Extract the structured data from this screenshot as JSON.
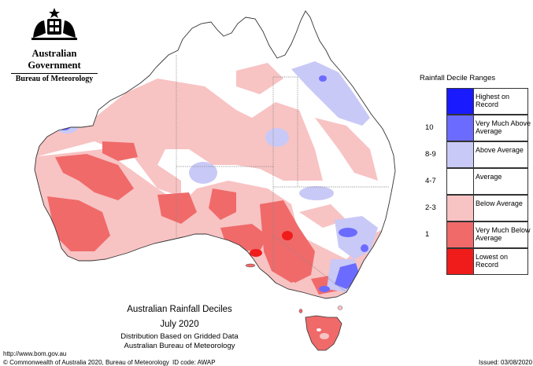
{
  "agency": {
    "government": "Australian Government",
    "bureau": "Bureau of Meteorology"
  },
  "caption": {
    "title": "Australian Rainfall Deciles",
    "period": "July 2020",
    "line3": "Distribution Based on Gridded Data",
    "line4": "Australian Bureau of Meteorology"
  },
  "legend": {
    "title": "Rainfall Decile Ranges",
    "items": [
      {
        "key": "",
        "label": "Highest on Record",
        "color": "#1a1aff"
      },
      {
        "key": "10",
        "label": "Very Much Above Average",
        "color": "#6b6bff"
      },
      {
        "key": "8-9",
        "label": "Above Average",
        "color": "#c9c9f7"
      },
      {
        "key": "4-7",
        "label": "Average",
        "color": "#ffffff"
      },
      {
        "key": "2-3",
        "label": "Below Average",
        "color": "#f8c3c3"
      },
      {
        "key": "1",
        "label": "Very Much Below Average",
        "color": "#f06a6a"
      },
      {
        "key": "",
        "label": "Lowest on Record",
        "color": "#f01c1c"
      }
    ]
  },
  "footer": {
    "url": "http://www.bom.gov.au",
    "copyright": "© Commonwealth of Australia 2020, Bureau of Meteorology",
    "id_code": "ID code: AWAP",
    "issued": "Issued: 03/08/2020"
  },
  "icons": {
    "crest": "coat-of-arms-icon"
  }
}
